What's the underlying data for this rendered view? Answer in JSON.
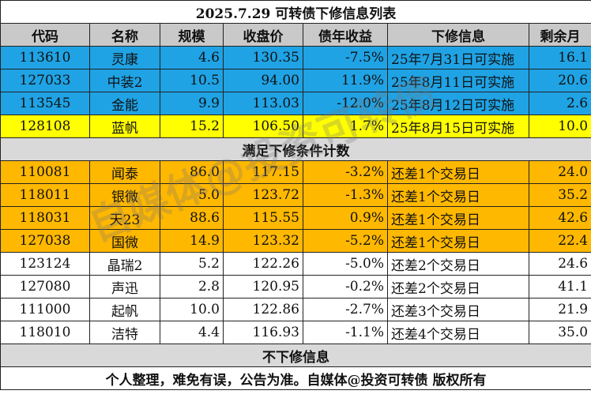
{
  "title": "2025.7.29 可转债下修信息列表",
  "columns": [
    "代码",
    "名称",
    "规模",
    "收盘价",
    "债年收益",
    "下修信息",
    "剩余月"
  ],
  "group1": [
    {
      "code": "113610",
      "name": "灵康",
      "scale": "4.6",
      "price": "130.35",
      "yield": "-7.5%",
      "info": "25年7月31日可实施",
      "months": "16.1",
      "color": "blue"
    },
    {
      "code": "127033",
      "name": "中装2",
      "scale": "10.5",
      "price": "94.00",
      "yield": "11.9%",
      "info": "25年8月11日可实施",
      "months": "20.6",
      "color": "blue"
    },
    {
      "code": "113545",
      "name": "金能",
      "scale": "9.9",
      "price": "113.03",
      "yield": "-12.0%",
      "info": "25年8月12日可实施",
      "months": "2.6",
      "color": "blue"
    },
    {
      "code": "128108",
      "name": "蓝帆",
      "scale": "15.2",
      "price": "106.50",
      "yield": "1.7%",
      "info": "25年8月15日可实施",
      "months": "10.0",
      "color": "yellow"
    }
  ],
  "section2": "满足下修条件计数",
  "group2": [
    {
      "code": "110081",
      "name": "闻泰",
      "scale": "86.0",
      "price": "117.15",
      "yield": "-3.2%",
      "info": "还差1个交易日",
      "months": "24.0",
      "color": "orange"
    },
    {
      "code": "118011",
      "name": "银微",
      "scale": "5.0",
      "price": "123.72",
      "yield": "-1.3%",
      "info": "还差1个交易日",
      "months": "35.2",
      "color": "orange"
    },
    {
      "code": "118031",
      "name": "天23",
      "scale": "88.6",
      "price": "115.55",
      "yield": "0.9%",
      "info": "还差1个交易日",
      "months": "42.6",
      "color": "orange"
    },
    {
      "code": "127038",
      "name": "国微",
      "scale": "14.9",
      "price": "123.32",
      "yield": "-5.2%",
      "info": "还差1个交易日",
      "months": "22.4",
      "color": "orange"
    },
    {
      "code": "123124",
      "name": "晶瑞2",
      "scale": "5.2",
      "price": "122.26",
      "yield": "-5.0%",
      "info": "还差2个交易日",
      "months": "24.6",
      "color": "white"
    },
    {
      "code": "127080",
      "name": "声迅",
      "scale": "2.8",
      "price": "120.95",
      "yield": "-0.2%",
      "info": "还差2个交易日",
      "months": "41.1",
      "color": "white"
    },
    {
      "code": "111000",
      "name": "起帆",
      "scale": "10.0",
      "price": "122.86",
      "yield": "-2.7%",
      "info": "还差3个交易日",
      "months": "21.9",
      "color": "white"
    },
    {
      "code": "118010",
      "name": "洁特",
      "scale": "4.4",
      "price": "116.93",
      "yield": "-1.1%",
      "info": "还差4个交易日",
      "months": "35.0",
      "color": "white"
    }
  ],
  "section3": "不下修信息",
  "footer": "个人整理，难免有误，公告为准。自媒体@投资可转债 版权所有",
  "watermark": "自媒体@投资可转债"
}
